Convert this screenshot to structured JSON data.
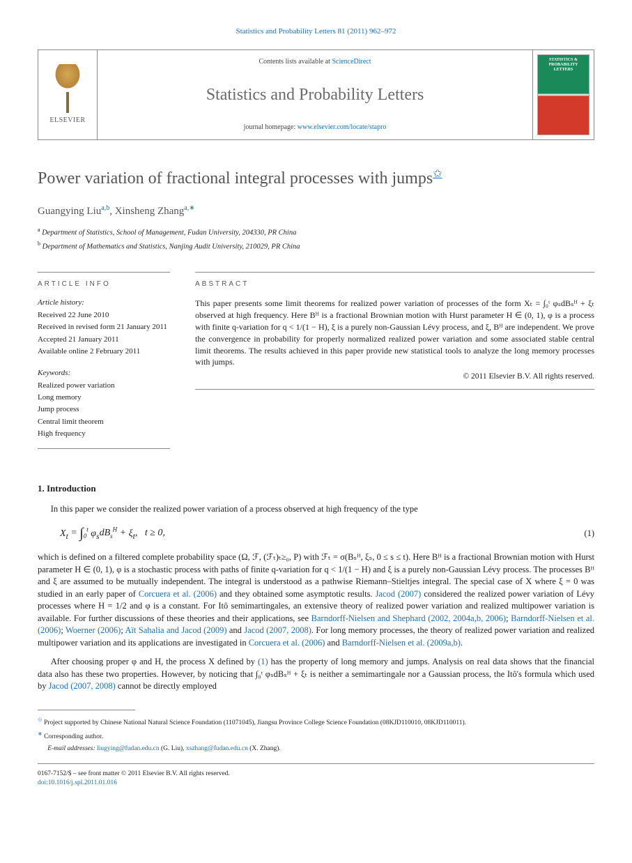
{
  "journal_ref": "Statistics and Probability Letters 81 (2011) 962–972",
  "header": {
    "elsevier": "ELSEVIER",
    "contents_prefix": "Contents lists available at ",
    "contents_link": "ScienceDirect",
    "journal_name": "Statistics and Probability Letters",
    "homepage_prefix": "journal homepage: ",
    "homepage_link": "www.elsevier.com/locate/stapro",
    "cover_text": "STATISTICS & PROBABILITY LETTERS"
  },
  "title": "Power variation of fractional integral processes with jumps",
  "title_star": "✩",
  "authors": {
    "a1_name": "Guangying Liu",
    "a1_sup": "a,b",
    "a2_name": "Xinsheng Zhang",
    "a2_sup": "a,",
    "corr": "∗"
  },
  "affiliations": {
    "a": "Department of Statistics, School of Management, Fudan University, 204330, PR China",
    "b": "Department of Mathematics and Statistics, Nanjing Audit University, 210029, PR China"
  },
  "article_info": {
    "heading": "ARTICLE INFO",
    "history_label": "Article history:",
    "received": "Received 22 June 2010",
    "revised": "Received in revised form 21 January 2011",
    "accepted": "Accepted 21 January 2011",
    "online": "Available online 2 February 2011",
    "keywords_label": "Keywords:",
    "kw1": "Realized power variation",
    "kw2": "Long memory",
    "kw3": "Jump process",
    "kw4": "Central limit theorem",
    "kw5": "High frequency"
  },
  "abstract": {
    "heading": "ABSTRACT",
    "text": "This paper presents some limit theorems for realized power variation of processes of the form Xₜ = ∫₀ᵗ φₛdBₛᴴ + ξₜ observed at high frequency. Here Bᴴ is a fractional Brownian motion with Hurst parameter H ∈ (0, 1), φ is a process with finite q-variation for q < 1/(1 − H), ξ is a purely non-Gaussian Lévy process, and ξ, Bᴴ are independent. We prove the convergence in probability for properly normalized realized power variation and some associated stable central limit theorems. The results achieved in this paper provide new statistical tools to analyze the long memory processes with jumps.",
    "copyright": "© 2011 Elsevier B.V. All rights reserved."
  },
  "section1": {
    "heading": "1.  Introduction",
    "p1": "In this paper we consider the realized power variation of a process observed at high frequency of the type",
    "eq1": "Xₜ = ∫₀ᵗ φₛdBₛᴴ + ξₜ,    t ≥ 0,",
    "eq1_num": "(1)",
    "p2_a": "which is defined on a filtered complete probability space (Ω, ℱ, (ℱₜ)ₜ≥₀, P) with ℱₜ = σ(Bₛᴴ, ξₛ, 0 ≤ s ≤ t). Here Bᴴ is a fractional Brownian motion with Hurst parameter H ∈ (0, 1), φ is a stochastic process with paths of finite q-variation for q < 1/(1 − H) and ξ is a purely non-Gaussian Lévy process. The processes Bᴴ and ξ are assumed to be mutually independent. The integral is understood as a pathwise Riemann–Stieltjes integral. The special case of X where ξ = 0 was studied in an early paper of ",
    "ref1": "Corcuera et al. (2006)",
    "p2_b": " and they obtained some asymptotic results. ",
    "ref2": "Jacod (2007)",
    "p2_c": " considered the realized power variation of Lévy processes where H = 1/2 and φ is a constant. For Itô semimartingales, an extensive theory of realized power variation and realized multipower variation is available. For further discussions of these theories and their applications, see ",
    "ref3": "Barndorff-Nielsen and Shephard (2002, 2004a,b, 2006)",
    "p2_d": "; ",
    "ref4": "Barndorff-Nielsen et al. (2006)",
    "p2_e": "; ",
    "ref5": "Woerner (2006)",
    "p2_f": "; ",
    "ref6": "Aït Sahalia and Jacod (2009)",
    "p2_g": " and ",
    "ref7": "Jacod (2007, 2008)",
    "p2_h": ". For long memory processes, the theory of realized power variation and realized multipower variation and its applications are investigated in ",
    "ref8": "Corcuera et al. (2006)",
    "p2_i": " and ",
    "ref9": "Barndorff-Nielsen et al. (2009a,b)",
    "p2_j": ".",
    "p3_a": "After choosing proper φ and H, the process X defined by ",
    "ref10": "(1)",
    "p3_b": " has the property of long memory and jumps. Analysis on real data shows that the financial data also has these two properties. However, by noticing that ∫₀ᵗ φₛdBₛᴴ + ξₜ is neither a semimartingale nor a Gaussian process, the Itô's formula which used by ",
    "ref11": "Jacod (2007, 2008)",
    "p3_c": " cannot be directly employed"
  },
  "footnotes": {
    "fn1_sym": "✩",
    "fn1": " Project supported by Chinese National Natural Science Foundation (11071045), Jiangsu Province College Science Foundation (08KJD110010, 08KJD110011).",
    "fn2_sym": "∗",
    "fn2": " Corresponding author.",
    "email_label": "E-mail addresses: ",
    "email1": "liugying@fudan.edu.cn",
    "email1_who": " (G. Liu), ",
    "email2": "xszhang@fudan.edu.cn",
    "email2_who": " (X. Zhang)."
  },
  "bottom": {
    "line1": "0167-7152/$ – see front matter © 2011 Elsevier B.V. All rights reserved.",
    "doi_label": "doi:",
    "doi": "10.1016/j.spl.2011.01.016"
  },
  "colors": {
    "link": "#1a6ec1",
    "title_gray": "#555555",
    "body": "#212121",
    "border": "#888888",
    "cover_green": "#1a8a5a",
    "cover_red": "#d43a2a"
  }
}
